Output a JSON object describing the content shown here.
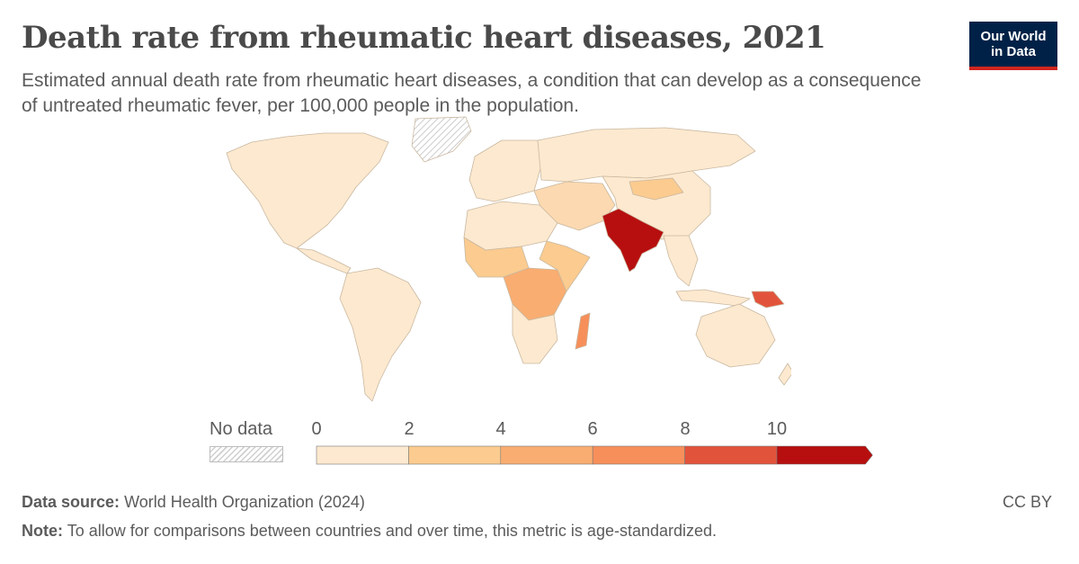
{
  "header": {
    "title": "Death rate from rheumatic heart diseases, 2021",
    "subtitle": "Estimated annual death rate from rheumatic heart diseases, a condition that can develop as a consequence of untreated rheumatic fever, per 100,000 people in the population."
  },
  "logo": {
    "line1": "Our World",
    "line2": "in Data",
    "bg_color": "#002147",
    "accent_color": "#ce261e"
  },
  "legend": {
    "no_data_label": "No data",
    "ticks": [
      "0",
      "2",
      "4",
      "6",
      "8",
      "10"
    ],
    "bins": [
      {
        "from": 0,
        "to": 2,
        "color": "#fde9cf"
      },
      {
        "from": 2,
        "to": 4,
        "color": "#fbcb8f"
      },
      {
        "from": 4,
        "to": 6,
        "color": "#f9ad71"
      },
      {
        "from": 6,
        "to": 8,
        "color": "#f78f5a"
      },
      {
        "from": 8,
        "to": 10,
        "color": "#e2533b"
      },
      {
        "from": 10,
        "to": null,
        "color": "#b70f0f"
      }
    ]
  },
  "footer": {
    "source_label": "Data source:",
    "source_text": "World Health Organization (2024)",
    "note_label": "Note:",
    "note_text": "To allow for comparisons between countries and over time, this metric is age-standardized.",
    "license": "CC BY"
  }
}
